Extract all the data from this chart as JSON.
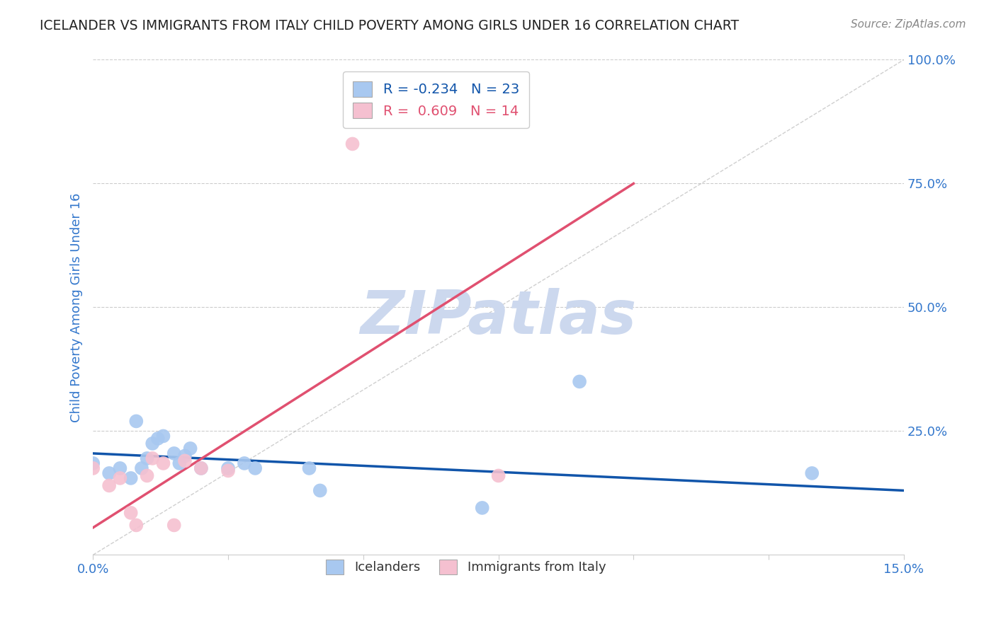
{
  "title": "ICELANDER VS IMMIGRANTS FROM ITALY CHILD POVERTY AMONG GIRLS UNDER 16 CORRELATION CHART",
  "source": "Source: ZipAtlas.com",
  "ylabel": "Child Poverty Among Girls Under 16",
  "xlim": [
    0.0,
    0.15
  ],
  "ylim": [
    0.0,
    1.0
  ],
  "xticks": [
    0.0,
    0.025,
    0.05,
    0.075,
    0.1,
    0.125,
    0.15
  ],
  "xticklabels": [
    "0.0%",
    "",
    "",
    "",
    "",
    "",
    "15.0%"
  ],
  "yticks": [
    0.0,
    0.25,
    0.5,
    0.75,
    1.0
  ],
  "yticklabels": [
    "",
    "25.0%",
    "50.0%",
    "75.0%",
    "100.0%"
  ],
  "blue_r": -0.234,
  "blue_n": 23,
  "pink_r": 0.609,
  "pink_n": 14,
  "blue_color": "#a8c8f0",
  "pink_color": "#f5c0d0",
  "blue_line_color": "#1155aa",
  "pink_line_color": "#e05070",
  "blue_scatter_x": [
    0.0,
    0.003,
    0.005,
    0.007,
    0.008,
    0.009,
    0.01,
    0.011,
    0.012,
    0.013,
    0.015,
    0.016,
    0.017,
    0.018,
    0.02,
    0.025,
    0.028,
    0.03,
    0.04,
    0.042,
    0.072,
    0.09,
    0.133
  ],
  "blue_scatter_y": [
    0.185,
    0.165,
    0.175,
    0.155,
    0.27,
    0.175,
    0.195,
    0.225,
    0.235,
    0.24,
    0.205,
    0.185,
    0.2,
    0.215,
    0.175,
    0.175,
    0.185,
    0.175,
    0.175,
    0.13,
    0.095,
    0.35,
    0.165
  ],
  "pink_scatter_x": [
    0.0,
    0.003,
    0.005,
    0.007,
    0.008,
    0.01,
    0.011,
    0.013,
    0.015,
    0.017,
    0.02,
    0.025,
    0.048,
    0.075
  ],
  "pink_scatter_y": [
    0.175,
    0.14,
    0.155,
    0.085,
    0.06,
    0.16,
    0.195,
    0.185,
    0.06,
    0.19,
    0.175,
    0.17,
    0.83,
    0.16
  ],
  "blue_line_x0": 0.0,
  "blue_line_x1": 0.15,
  "blue_line_y0": 0.205,
  "blue_line_y1": 0.13,
  "pink_line_x0": 0.0,
  "pink_line_x1": 0.1,
  "pink_line_y0": 0.055,
  "pink_line_y1": 0.75,
  "watermark": "ZIPatlas",
  "watermark_color": "#ccd8ee",
  "ref_line_color": "#bbbbbb",
  "grid_color": "#cccccc",
  "title_color": "#222222",
  "axis_label_color": "#3377cc",
  "tick_color": "#3377cc"
}
